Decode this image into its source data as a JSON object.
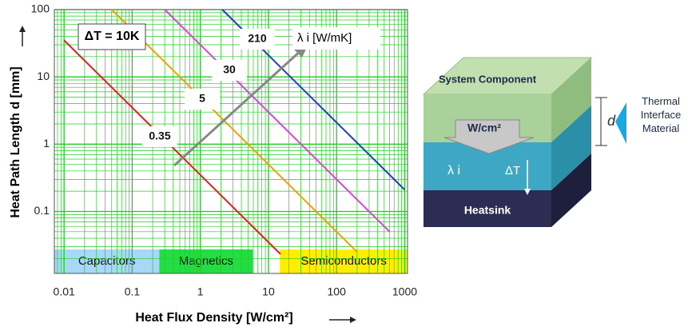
{
  "chart_data": {
    "type": "line",
    "x_label": "Heat Flux Density [W/cm²]",
    "y_label": "Heat Path Length d [mm]",
    "xscale": "log",
    "yscale": "log",
    "xlim": [
      0.0072,
      1100
    ],
    "ylim": [
      0.012,
      100
    ],
    "xticks": [
      0.01,
      0.1,
      1,
      10,
      100,
      1000
    ],
    "yticks": [
      0.1,
      1,
      10,
      100
    ],
    "grid": "minor",
    "grid_color": "#22cc22",
    "annotations": [
      "ΔT = 10K",
      "λ i [W/mK]"
    ],
    "series": [
      {
        "name": "0.35",
        "color": "#e02020",
        "x": [
          0.01,
          15
        ],
        "values": [
          35,
          0.0233
        ]
      },
      {
        "name": "5",
        "color": "#f0a000",
        "x": [
          0.05,
          200
        ],
        "values": [
          100,
          0.025
        ]
      },
      {
        "name": "30",
        "color": "#e040e0",
        "x": [
          0.3,
          600
        ],
        "values": [
          100,
          0.05
        ]
      },
      {
        "name": "210",
        "color": "#2040c0",
        "x": [
          2.1,
          1000
        ],
        "values": [
          100,
          0.21
        ]
      }
    ],
    "regions": [
      {
        "label": "Capacitors",
        "color": "#a8d8f8",
        "from": 0.0072,
        "to": 0.25
      },
      {
        "label": "Magnetics",
        "color": "#22dd44",
        "from": 0.25,
        "to": 5.9
      },
      {
        "label": "Semiconductors",
        "color": "#ffee00",
        "from": 14.7,
        "to": 1100
      }
    ]
  },
  "diagram": {
    "top": "System Component",
    "flux": "W/cm²",
    "thickness": "d",
    "tim": "Thermal Interface Material",
    "conductivity": "λ i",
    "delta": "ΔT",
    "bottom": "Heatsink"
  }
}
